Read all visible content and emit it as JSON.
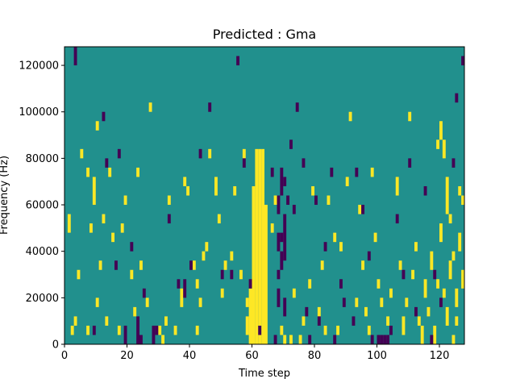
{
  "chart_data": {
    "type": "heatmap",
    "title": "Predicted : Gma",
    "xlabel": "Time step",
    "ylabel": "Frequency (Hz)",
    "xlim": [
      0,
      128
    ],
    "ylim": [
      0,
      128000
    ],
    "xticks": [
      0,
      20,
      40,
      60,
      80,
      100,
      120
    ],
    "xtick_labels": [
      "0",
      "20",
      "40",
      "60",
      "80",
      "100",
      "120"
    ],
    "yticks": [
      0,
      20000,
      40000,
      60000,
      80000,
      100000,
      120000
    ],
    "ytick_labels": [
      "0",
      "20000",
      "40000",
      "60000",
      "80000",
      "100000",
      "120000"
    ],
    "grid": false,
    "colormap": "viridis",
    "colors": {
      "background": "#21908d",
      "high": "#fde725",
      "low": "#440154"
    },
    "levels": {
      "low": -1,
      "mid": 0,
      "high": 1
    },
    "cell_height_hz": 4000,
    "high_cells": [
      [
        62,
        0,
        84000
      ],
      [
        61,
        0,
        84000
      ],
      [
        63,
        0,
        84000
      ],
      [
        60,
        0,
        68000
      ],
      [
        64,
        0,
        60000
      ],
      [
        59,
        0,
        24000
      ],
      [
        58,
        4000,
        12000
      ],
      [
        1,
        48000,
        56000
      ],
      [
        2,
        4000,
        8000
      ],
      [
        3,
        8000,
        12000
      ],
      [
        4,
        28000,
        32000
      ],
      [
        5,
        80000,
        84000
      ],
      [
        7,
        4000,
        8000
      ],
      [
        7,
        72000,
        76000
      ],
      [
        8,
        48000,
        52000
      ],
      [
        9,
        60000,
        72000
      ],
      [
        10,
        16000,
        20000
      ],
      [
        10,
        92000,
        96000
      ],
      [
        11,
        32000,
        36000
      ],
      [
        12,
        52000,
        56000
      ],
      [
        13,
        8000,
        12000
      ],
      [
        14,
        72000,
        76000
      ],
      [
        15,
        44000,
        48000
      ],
      [
        17,
        4000,
        8000
      ],
      [
        18,
        48000,
        52000
      ],
      [
        19,
        60000,
        64000
      ],
      [
        21,
        28000,
        32000
      ],
      [
        22,
        12000,
        16000
      ],
      [
        23,
        72000,
        76000
      ],
      [
        24,
        32000,
        36000
      ],
      [
        26,
        16000,
        20000
      ],
      [
        27,
        100000,
        104000
      ],
      [
        30,
        4000,
        8000
      ],
      [
        31,
        0,
        4000
      ],
      [
        32,
        8000,
        12000
      ],
      [
        33,
        60000,
        64000
      ],
      [
        35,
        4000,
        8000
      ],
      [
        37,
        16000,
        24000
      ],
      [
        38,
        68000,
        72000
      ],
      [
        39,
        64000,
        68000
      ],
      [
        41,
        32000,
        36000
      ],
      [
        42,
        4000,
        8000
      ],
      [
        42,
        24000,
        28000
      ],
      [
        43,
        16000,
        20000
      ],
      [
        44,
        36000,
        40000
      ],
      [
        45,
        40000,
        44000
      ],
      [
        46,
        80000,
        84000
      ],
      [
        48,
        64000,
        72000
      ],
      [
        49,
        52000,
        56000
      ],
      [
        50,
        20000,
        24000
      ],
      [
        51,
        32000,
        36000
      ],
      [
        53,
        36000,
        40000
      ],
      [
        54,
        64000,
        68000
      ],
      [
        56,
        28000,
        32000
      ],
      [
        57,
        80000,
        84000
      ],
      [
        58,
        16000,
        20000
      ],
      [
        66,
        48000,
        52000
      ],
      [
        67,
        60000,
        64000
      ],
      [
        69,
        4000,
        8000
      ],
      [
        70,
        0,
        4000
      ],
      [
        72,
        0,
        4000
      ],
      [
        73,
        20000,
        24000
      ],
      [
        75,
        0,
        4000
      ],
      [
        76,
        8000,
        12000
      ],
      [
        78,
        24000,
        28000
      ],
      [
        79,
        64000,
        68000
      ],
      [
        81,
        12000,
        16000
      ],
      [
        82,
        32000,
        36000
      ],
      [
        83,
        4000,
        8000
      ],
      [
        84,
        60000,
        64000
      ],
      [
        86,
        44000,
        48000
      ],
      [
        87,
        4000,
        8000
      ],
      [
        88,
        40000,
        44000
      ],
      [
        90,
        68000,
        72000
      ],
      [
        91,
        96000,
        100000
      ],
      [
        93,
        16000,
        20000
      ],
      [
        94,
        56000,
        60000
      ],
      [
        95,
        32000,
        36000
      ],
      [
        96,
        12000,
        16000
      ],
      [
        97,
        4000,
        8000
      ],
      [
        98,
        72000,
        76000
      ],
      [
        99,
        44000,
        48000
      ],
      [
        100,
        24000,
        28000
      ],
      [
        101,
        16000,
        20000
      ],
      [
        103,
        8000,
        12000
      ],
      [
        104,
        20000,
        24000
      ],
      [
        106,
        64000,
        72000
      ],
      [
        107,
        32000,
        36000
      ],
      [
        108,
        4000,
        12000
      ],
      [
        109,
        16000,
        20000
      ],
      [
        110,
        96000,
        100000
      ],
      [
        111,
        28000,
        32000
      ],
      [
        112,
        40000,
        44000
      ],
      [
        113,
        8000,
        12000
      ],
      [
        114,
        0,
        8000
      ],
      [
        115,
        20000,
        28000
      ],
      [
        116,
        12000,
        16000
      ],
      [
        117,
        32000,
        40000
      ],
      [
        118,
        0,
        8000
      ],
      [
        119,
        24000,
        28000
      ],
      [
        120,
        44000,
        52000
      ],
      [
        121,
        20000,
        24000
      ],
      [
        122,
        8000,
        16000
      ],
      [
        122,
        56000,
        64000
      ],
      [
        123,
        28000,
        36000
      ],
      [
        124,
        0,
        4000
      ],
      [
        124,
        36000,
        40000
      ],
      [
        125,
        16000,
        24000
      ],
      [
        126,
        40000,
        48000
      ],
      [
        127,
        24000,
        32000
      ],
      [
        121,
        80000,
        88000
      ],
      [
        122,
        64000,
        72000
      ],
      [
        120,
        88000,
        96000
      ],
      [
        126,
        64000,
        68000
      ],
      [
        119,
        84000,
        88000
      ],
      [
        123,
        52000,
        56000
      ],
      [
        125,
        8000,
        12000
      ],
      [
        127,
        60000,
        64000
      ]
    ],
    "low_cells": [
      [
        67,
        0,
        4000
      ],
      [
        68,
        16000,
        24000
      ],
      [
        68,
        40000,
        48000
      ],
      [
        68,
        56000,
        64000
      ],
      [
        69,
        32000,
        40000
      ],
      [
        69,
        64000,
        76000
      ],
      [
        70,
        36000,
        56000
      ],
      [
        70,
        12000,
        20000
      ],
      [
        69,
        44000,
        48000
      ],
      [
        68,
        28000,
        32000
      ],
      [
        70,
        68000,
        72000
      ],
      [
        3,
        120000,
        128000
      ],
      [
        9,
        4000,
        8000
      ],
      [
        12,
        96000,
        100000
      ],
      [
        13,
        76000,
        80000
      ],
      [
        16,
        32000,
        36000
      ],
      [
        17,
        80000,
        84000
      ],
      [
        19,
        0,
        8000
      ],
      [
        21,
        40000,
        44000
      ],
      [
        23,
        0,
        12000
      ],
      [
        24,
        0,
        4000
      ],
      [
        25,
        20000,
        24000
      ],
      [
        28,
        0,
        8000
      ],
      [
        29,
        4000,
        8000
      ],
      [
        33,
        52000,
        56000
      ],
      [
        36,
        24000,
        28000
      ],
      [
        38,
        20000,
        28000
      ],
      [
        40,
        32000,
        36000
      ],
      [
        43,
        80000,
        84000
      ],
      [
        46,
        100000,
        104000
      ],
      [
        50,
        28000,
        32000
      ],
      [
        53,
        28000,
        32000
      ],
      [
        55,
        120000,
        124000
      ],
      [
        57,
        76000,
        80000
      ],
      [
        59,
        24000,
        28000
      ],
      [
        62,
        4000,
        8000
      ],
      [
        66,
        72000,
        76000
      ],
      [
        71,
        60000,
        64000
      ],
      [
        72,
        84000,
        88000
      ],
      [
        73,
        56000,
        60000
      ],
      [
        74,
        100000,
        104000
      ],
      [
        76,
        76000,
        80000
      ],
      [
        77,
        12000,
        16000
      ],
      [
        78,
        0,
        4000
      ],
      [
        80,
        60000,
        64000
      ],
      [
        81,
        8000,
        12000
      ],
      [
        83,
        40000,
        44000
      ],
      [
        85,
        72000,
        76000
      ],
      [
        86,
        0,
        4000
      ],
      [
        88,
        24000,
        28000
      ],
      [
        89,
        16000,
        20000
      ],
      [
        92,
        8000,
        12000
      ],
      [
        93,
        72000,
        76000
      ],
      [
        95,
        56000,
        60000
      ],
      [
        97,
        36000,
        40000
      ],
      [
        98,
        0,
        4000
      ],
      [
        100,
        0,
        4000
      ],
      [
        101,
        0,
        4000
      ],
      [
        102,
        0,
        4000
      ],
      [
        103,
        0,
        4000
      ],
      [
        104,
        4000,
        8000
      ],
      [
        106,
        52000,
        56000
      ],
      [
        108,
        28000,
        32000
      ],
      [
        110,
        76000,
        80000
      ],
      [
        112,
        12000,
        16000
      ],
      [
        115,
        64000,
        68000
      ],
      [
        117,
        0,
        4000
      ],
      [
        118,
        28000,
        32000
      ],
      [
        120,
        16000,
        20000
      ],
      [
        124,
        76000,
        80000
      ],
      [
        125,
        104000,
        108000
      ],
      [
        127,
        120000,
        124000
      ]
    ]
  }
}
